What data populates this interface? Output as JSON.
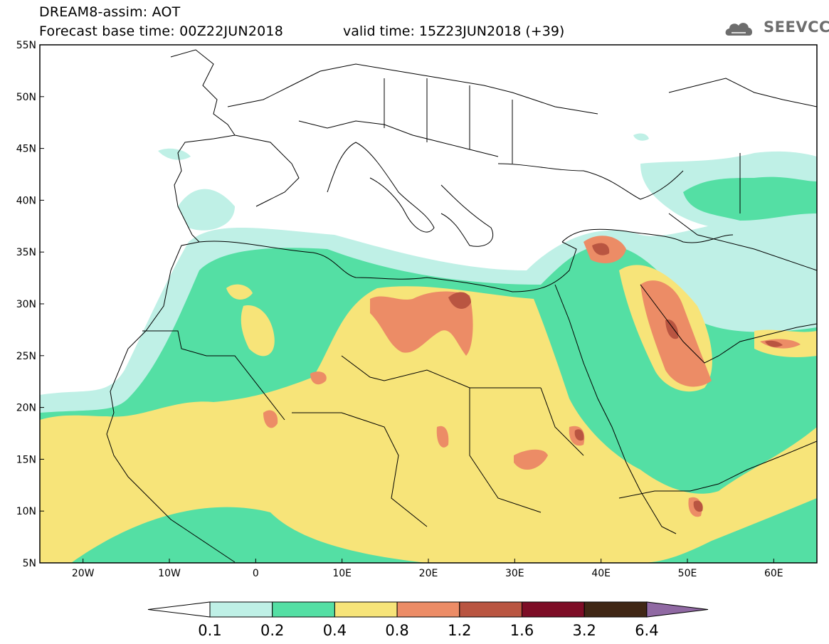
{
  "header": {
    "line1": "DREAM8-assim: AOT",
    "line2": "Forecast base time: 00Z22JUN2018",
    "valid": "valid time: 15Z23JUN2018 (+39)",
    "logo_text": "SEEVCCC"
  },
  "map": {
    "extent": {
      "lon": [
        -25,
        65
      ],
      "lat": [
        5,
        55
      ]
    },
    "lat_labels": [
      "55N",
      "50N",
      "45N",
      "40N",
      "35N",
      "30N",
      "25N",
      "20N",
      "15N",
      "10N",
      "5N"
    ],
    "lon_labels": [
      "20W",
      "10W",
      "0",
      "10E",
      "20E",
      "30E",
      "40E",
      "50E",
      "60E"
    ]
  },
  "colorbar": {
    "labels": [
      "0.1",
      "0.2",
      "0.4",
      "0.8",
      "1.2",
      "1.6",
      "3.2",
      "6.4"
    ],
    "colors": [
      "#ffffff",
      "#bff0e6",
      "#54dfa4",
      "#f7e479",
      "#ec8c66",
      "#b95541",
      "#7d0d26",
      "#402715",
      "#9069a3"
    ]
  },
  "colors": {
    "level1": "#bff0e6",
    "level2": "#54dfa4",
    "level3": "#f7e479",
    "level4": "#ec8c66",
    "level5": "#b95541",
    "border": "#000000"
  }
}
